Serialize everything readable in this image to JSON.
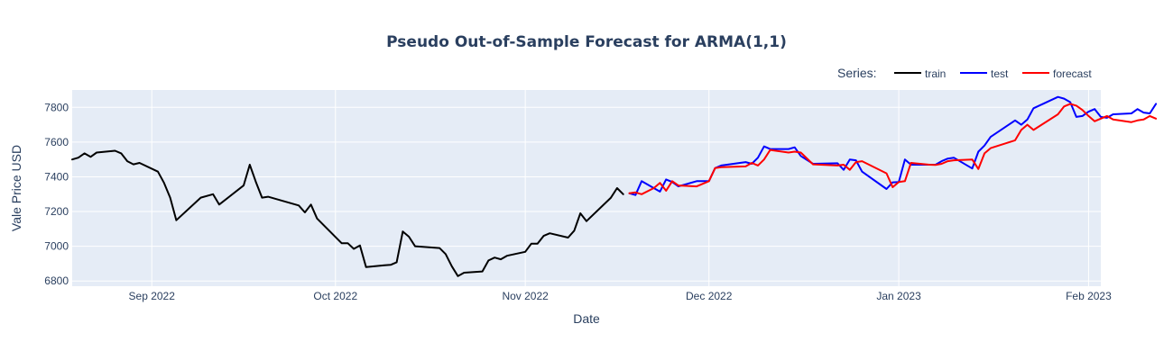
{
  "chart_data": {
    "type": "line",
    "title": "Pseudo Out-of-Sample Forecast for ARMA(1,1)",
    "xlabel": "Date",
    "ylabel": "Vale Price USD",
    "xlim": [
      "2022-08-19",
      "2023-02-03"
    ],
    "ylim": [
      6770,
      7900
    ],
    "grid": true,
    "legend_title": "Series:",
    "legend_position": "top-right",
    "x_ticks": [
      {
        "date": "2022-09-01",
        "label": "Sep 2022"
      },
      {
        "date": "2022-10-01",
        "label": "Oct 2022"
      },
      {
        "date": "2022-11-01",
        "label": "Nov 2022"
      },
      {
        "date": "2022-12-01",
        "label": "Dec 2022"
      },
      {
        "date": "2023-01-01",
        "label": "Jan 2023"
      },
      {
        "date": "2023-02-01",
        "label": "Feb 2023"
      }
    ],
    "y_ticks": [
      6800,
      7000,
      7200,
      7400,
      7600,
      7800
    ],
    "series": [
      {
        "name": "train",
        "color": "#000000",
        "points": [
          [
            "2022-08-19",
            7500
          ],
          [
            "2022-08-20",
            7510
          ],
          [
            "2022-08-21",
            7535
          ],
          [
            "2022-08-22",
            7515
          ],
          [
            "2022-08-23",
            7540
          ],
          [
            "2022-08-26",
            7550
          ],
          [
            "2022-08-27",
            7535
          ],
          [
            "2022-08-28",
            7490
          ],
          [
            "2022-08-29",
            7472
          ],
          [
            "2022-08-30",
            7480
          ],
          [
            "2022-09-02",
            7430
          ],
          [
            "2022-09-03",
            7365
          ],
          [
            "2022-09-04",
            7280
          ],
          [
            "2022-09-05",
            7150
          ],
          [
            "2022-09-09",
            7280
          ],
          [
            "2022-09-11",
            7300
          ],
          [
            "2022-09-12",
            7240
          ],
          [
            "2022-09-16",
            7350
          ],
          [
            "2022-09-17",
            7470
          ],
          [
            "2022-09-18",
            7370
          ],
          [
            "2022-09-19",
            7280
          ],
          [
            "2022-09-20",
            7285
          ],
          [
            "2022-09-25",
            7235
          ],
          [
            "2022-09-26",
            7195
          ],
          [
            "2022-09-27",
            7240
          ],
          [
            "2022-09-28",
            7160
          ],
          [
            "2022-10-02",
            7018
          ],
          [
            "2022-10-03",
            7018
          ],
          [
            "2022-10-04",
            6985
          ],
          [
            "2022-10-05",
            7005
          ],
          [
            "2022-10-06",
            6880
          ],
          [
            "2022-10-09",
            6890
          ],
          [
            "2022-10-10",
            6893
          ],
          [
            "2022-10-11",
            6908
          ],
          [
            "2022-10-12",
            7085
          ],
          [
            "2022-10-13",
            7055
          ],
          [
            "2022-10-14",
            7000
          ],
          [
            "2022-10-18",
            6990
          ],
          [
            "2022-10-19",
            6955
          ],
          [
            "2022-10-20",
            6885
          ],
          [
            "2022-10-21",
            6828
          ],
          [
            "2022-10-22",
            6848
          ],
          [
            "2022-10-25",
            6855
          ],
          [
            "2022-10-26",
            6918
          ],
          [
            "2022-10-27",
            6935
          ],
          [
            "2022-10-28",
            6925
          ],
          [
            "2022-10-29",
            6945
          ],
          [
            "2022-11-01",
            6968
          ],
          [
            "2022-11-02",
            7015
          ],
          [
            "2022-11-03",
            7015
          ],
          [
            "2022-11-04",
            7060
          ],
          [
            "2022-11-05",
            7075
          ],
          [
            "2022-11-08",
            7050
          ],
          [
            "2022-11-09",
            7090
          ],
          [
            "2022-11-10",
            7190
          ],
          [
            "2022-11-11",
            7145
          ],
          [
            "2022-11-15",
            7280
          ],
          [
            "2022-11-16",
            7335
          ],
          [
            "2022-11-17",
            7300
          ]
        ]
      },
      {
        "name": "test",
        "color": "#0000ff",
        "points": [
          [
            "2022-11-18",
            7305
          ],
          [
            "2022-11-19",
            7295
          ],
          [
            "2022-11-20",
            7375
          ],
          [
            "2022-11-22",
            7335
          ],
          [
            "2022-11-23",
            7315
          ],
          [
            "2022-11-24",
            7385
          ],
          [
            "2022-11-25",
            7370
          ],
          [
            "2022-11-26",
            7345
          ],
          [
            "2022-11-29",
            7375
          ],
          [
            "2022-12-01",
            7375
          ],
          [
            "2022-12-02",
            7450
          ],
          [
            "2022-12-03",
            7465
          ],
          [
            "2022-12-07",
            7485
          ],
          [
            "2022-12-08",
            7475
          ],
          [
            "2022-12-09",
            7510
          ],
          [
            "2022-12-10",
            7575
          ],
          [
            "2022-12-11",
            7560
          ],
          [
            "2022-12-14",
            7560
          ],
          [
            "2022-12-15",
            7570
          ],
          [
            "2022-12-16",
            7520
          ],
          [
            "2022-12-18",
            7475
          ],
          [
            "2022-12-22",
            7478
          ],
          [
            "2022-12-23",
            7440
          ],
          [
            "2022-12-24",
            7500
          ],
          [
            "2022-12-25",
            7495
          ],
          [
            "2022-12-26",
            7430
          ],
          [
            "2022-12-30",
            7330
          ],
          [
            "2022-12-31",
            7368
          ],
          [
            "2023-01-01",
            7370
          ],
          [
            "2023-01-02",
            7500
          ],
          [
            "2023-01-03",
            7470
          ],
          [
            "2023-01-06",
            7470
          ],
          [
            "2023-01-07",
            7470
          ],
          [
            "2023-01-08",
            7490
          ],
          [
            "2023-01-09",
            7505
          ],
          [
            "2023-01-10",
            7510
          ],
          [
            "2023-01-13",
            7448
          ],
          [
            "2023-01-14",
            7545
          ],
          [
            "2023-01-15",
            7580
          ],
          [
            "2023-01-16",
            7630
          ],
          [
            "2023-01-20",
            7725
          ],
          [
            "2023-01-21",
            7700
          ],
          [
            "2023-01-22",
            7730
          ],
          [
            "2023-01-23",
            7795
          ],
          [
            "2023-01-27",
            7860
          ],
          [
            "2023-01-28",
            7850
          ],
          [
            "2023-01-29",
            7830
          ],
          [
            "2023-01-30",
            7745
          ],
          [
            "2023-01-31",
            7750
          ],
          [
            "2023-02-01",
            7775
          ],
          [
            "2023-02-02",
            7790
          ],
          [
            "2023-02-03",
            7745
          ],
          [
            "2023-02-04",
            7740
          ],
          [
            "2023-02-05",
            7760
          ],
          [
            "2023-02-08",
            7765
          ],
          [
            "2023-02-09",
            7790
          ],
          [
            "2023-02-10",
            7770
          ],
          [
            "2023-02-11",
            7765
          ],
          [
            "2023-02-12",
            7820
          ]
        ]
      },
      {
        "name": "forecast",
        "color": "#ff0000",
        "points": [
          [
            "2022-11-18",
            7305
          ],
          [
            "2022-11-19",
            7310
          ],
          [
            "2022-11-20",
            7300
          ],
          [
            "2022-11-22",
            7335
          ],
          [
            "2022-11-23",
            7365
          ],
          [
            "2022-11-24",
            7320
          ],
          [
            "2022-11-25",
            7375
          ],
          [
            "2022-11-26",
            7350
          ],
          [
            "2022-11-29",
            7345
          ],
          [
            "2022-12-01",
            7375
          ],
          [
            "2022-12-02",
            7450
          ],
          [
            "2022-12-03",
            7455
          ],
          [
            "2022-12-07",
            7460
          ],
          [
            "2022-12-08",
            7480
          ],
          [
            "2022-12-09",
            7465
          ],
          [
            "2022-12-10",
            7500
          ],
          [
            "2022-12-11",
            7555
          ],
          [
            "2022-12-14",
            7540
          ],
          [
            "2022-12-15",
            7545
          ],
          [
            "2022-12-16",
            7540
          ],
          [
            "2022-12-18",
            7472
          ],
          [
            "2022-12-22",
            7465
          ],
          [
            "2022-12-23",
            7470
          ],
          [
            "2022-12-24",
            7440
          ],
          [
            "2022-12-25",
            7485
          ],
          [
            "2022-12-26",
            7490
          ],
          [
            "2022-12-30",
            7420
          ],
          [
            "2022-12-31",
            7340
          ],
          [
            "2023-01-01",
            7370
          ],
          [
            "2023-01-02",
            7375
          ],
          [
            "2023-01-03",
            7480
          ],
          [
            "2023-01-06",
            7470
          ],
          [
            "2023-01-07",
            7468
          ],
          [
            "2023-01-08",
            7475
          ],
          [
            "2023-01-09",
            7490
          ],
          [
            "2023-01-10",
            7495
          ],
          [
            "2023-01-13",
            7500
          ],
          [
            "2023-01-14",
            7445
          ],
          [
            "2023-01-15",
            7535
          ],
          [
            "2023-01-16",
            7565
          ],
          [
            "2023-01-20",
            7610
          ],
          [
            "2023-01-21",
            7670
          ],
          [
            "2023-01-22",
            7700
          ],
          [
            "2023-01-23",
            7670
          ],
          [
            "2023-01-27",
            7760
          ],
          [
            "2023-01-28",
            7805
          ],
          [
            "2023-01-29",
            7820
          ],
          [
            "2023-01-30",
            7810
          ],
          [
            "2023-01-31",
            7785
          ],
          [
            "2023-02-01",
            7750
          ],
          [
            "2023-02-02",
            7720
          ],
          [
            "2023-02-03",
            7735
          ],
          [
            "2023-02-04",
            7750
          ],
          [
            "2023-02-05",
            7730
          ],
          [
            "2023-02-08",
            7715
          ],
          [
            "2023-02-09",
            7725
          ],
          [
            "2023-02-10",
            7730
          ],
          [
            "2023-02-11",
            7750
          ],
          [
            "2023-02-12",
            7735
          ]
        ]
      }
    ]
  }
}
